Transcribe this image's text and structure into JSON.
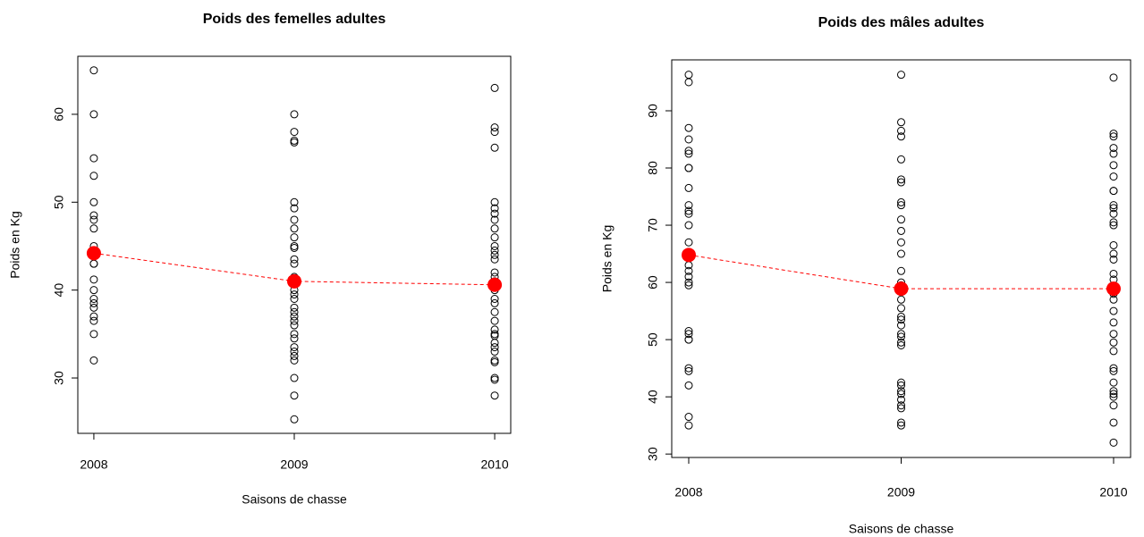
{
  "chart_data": [
    {
      "type": "scatter",
      "title": "Poids des femelles adultes",
      "x_label": "Saisons de chasse",
      "y_label": "Poids en Kg",
      "xlim": [
        2007.92,
        2010.08
      ],
      "xticks": [
        2008,
        2009,
        2010
      ],
      "ylim": [
        23.7,
        66.6
      ],
      "yticks": [
        30,
        40,
        50,
        60
      ],
      "series": [
        {
          "kind": "points",
          "color": "#000000",
          "x": 2008,
          "values": [
            65,
            60,
            55,
            53,
            50,
            48.5,
            48,
            47,
            45,
            44.5,
            44,
            43,
            43,
            41.2,
            40,
            39,
            38.5,
            38,
            37,
            36.5,
            35,
            32
          ]
        },
        {
          "kind": "points",
          "color": "#000000",
          "x": 2009,
          "values": [
            60,
            58,
            57,
            56.8,
            50,
            49.3,
            48,
            47,
            46,
            45,
            44.8,
            43.5,
            43,
            41.5,
            41,
            40,
            39.5,
            39,
            38,
            37.5,
            37,
            36.5,
            36,
            35,
            34.5,
            33.5,
            33,
            32.5,
            32,
            30,
            28,
            25.3
          ]
        },
        {
          "kind": "points",
          "color": "#000000",
          "x": 2010,
          "values": [
            63,
            58.5,
            58,
            56.2,
            50,
            49.3,
            48.7,
            48,
            47,
            46,
            45,
            44.5,
            44,
            43.5,
            42,
            41.5,
            41,
            40.5,
            40,
            39,
            38.5,
            37.5,
            36.5,
            35.5,
            35,
            34.8,
            34,
            33.5,
            33,
            32,
            31.8,
            30,
            29.8,
            28
          ]
        },
        {
          "kind": "mean-line",
          "color": "#ff0000",
          "x": [
            2008,
            2009,
            2010
          ],
          "values": [
            44.2,
            41,
            40.6
          ]
        }
      ]
    },
    {
      "type": "scatter",
      "title": "Poids des mâles adultes",
      "x_label": "Saisons de chasse",
      "y_label": "Poids en Kg",
      "xlim": [
        2007.92,
        2010.08
      ],
      "xticks": [
        2008,
        2009,
        2010
      ],
      "ylim": [
        29.4,
        98.9
      ],
      "yticks": [
        30,
        40,
        50,
        60,
        70,
        80,
        90
      ],
      "series": [
        {
          "kind": "points",
          "color": "#000000",
          "x": 2008,
          "values": [
            96.3,
            95,
            87,
            85,
            83,
            82.5,
            80,
            80,
            76.5,
            73.5,
            72.5,
            72,
            70,
            67,
            65,
            63,
            62,
            61,
            60,
            59.5,
            51.5,
            51,
            50,
            50,
            45,
            44.5,
            42,
            36.5,
            35
          ]
        },
        {
          "kind": "points",
          "color": "#000000",
          "x": 2009,
          "values": [
            96.3,
            88,
            86.5,
            85.5,
            81.5,
            78,
            77.5,
            74,
            73.5,
            71,
            69,
            67,
            65,
            62,
            60,
            59.5,
            58.5,
            57,
            55.5,
            54,
            53.5,
            52.5,
            51,
            50.5,
            49.5,
            49,
            42.5,
            42,
            41,
            40.5,
            39.5,
            38.5,
            38,
            35.5,
            35
          ]
        },
        {
          "kind": "points",
          "color": "#000000",
          "x": 2010,
          "values": [
            95.8,
            86,
            85.5,
            83.5,
            82.5,
            80.5,
            78.5,
            76,
            76,
            73.5,
            73,
            72,
            70.5,
            70,
            66.5,
            65,
            64,
            61.5,
            60.5,
            59,
            58,
            57,
            55,
            53,
            51,
            49.5,
            48,
            45,
            44.5,
            42.5,
            41,
            40.5,
            40,
            38.5,
            35.5,
            32
          ]
        },
        {
          "kind": "mean-line",
          "color": "#ff0000",
          "x": [
            2008,
            2009,
            2010
          ],
          "values": [
            64.8,
            58.9,
            58.9
          ]
        }
      ]
    }
  ]
}
